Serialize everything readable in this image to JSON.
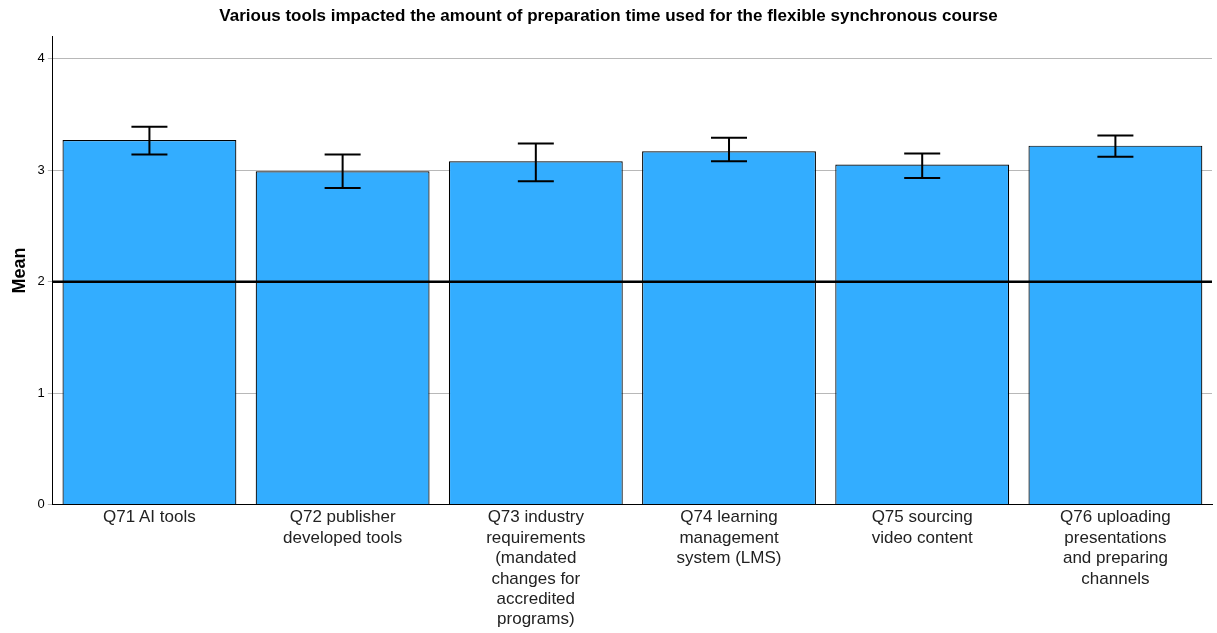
{
  "chart_data": {
    "type": "bar",
    "title": "Various tools impacted the amount of preparation time used for the flexible synchronous course",
    "ylabel": "Mean",
    "categories": [
      "Q71 AI tools",
      "Q72 publisher developed tools",
      "Q73 industry requirements (mandated changes for accredited programs)",
      "Q74 learning management system (LMS)",
      "Q75 sourcing video content",
      "Q76 uploading presentations and preparing channels"
    ],
    "values": [
      3.27,
      2.99,
      3.08,
      3.17,
      3.05,
      3.22
    ],
    "errors": [
      [
        3.14,
        3.39
      ],
      [
        2.84,
        3.14
      ],
      [
        2.9,
        3.24
      ],
      [
        3.08,
        3.29
      ],
      [
        2.93,
        3.15
      ],
      [
        3.12,
        3.31
      ]
    ],
    "color": "#33adff",
    "ylim": [
      0,
      4.2
    ],
    "yticks": [
      0,
      1,
      2,
      3,
      4
    ],
    "grid": "y",
    "legend": false,
    "ref_lines": [
      {
        "axis": "y",
        "value": 2,
        "color": "#000000"
      }
    ]
  }
}
